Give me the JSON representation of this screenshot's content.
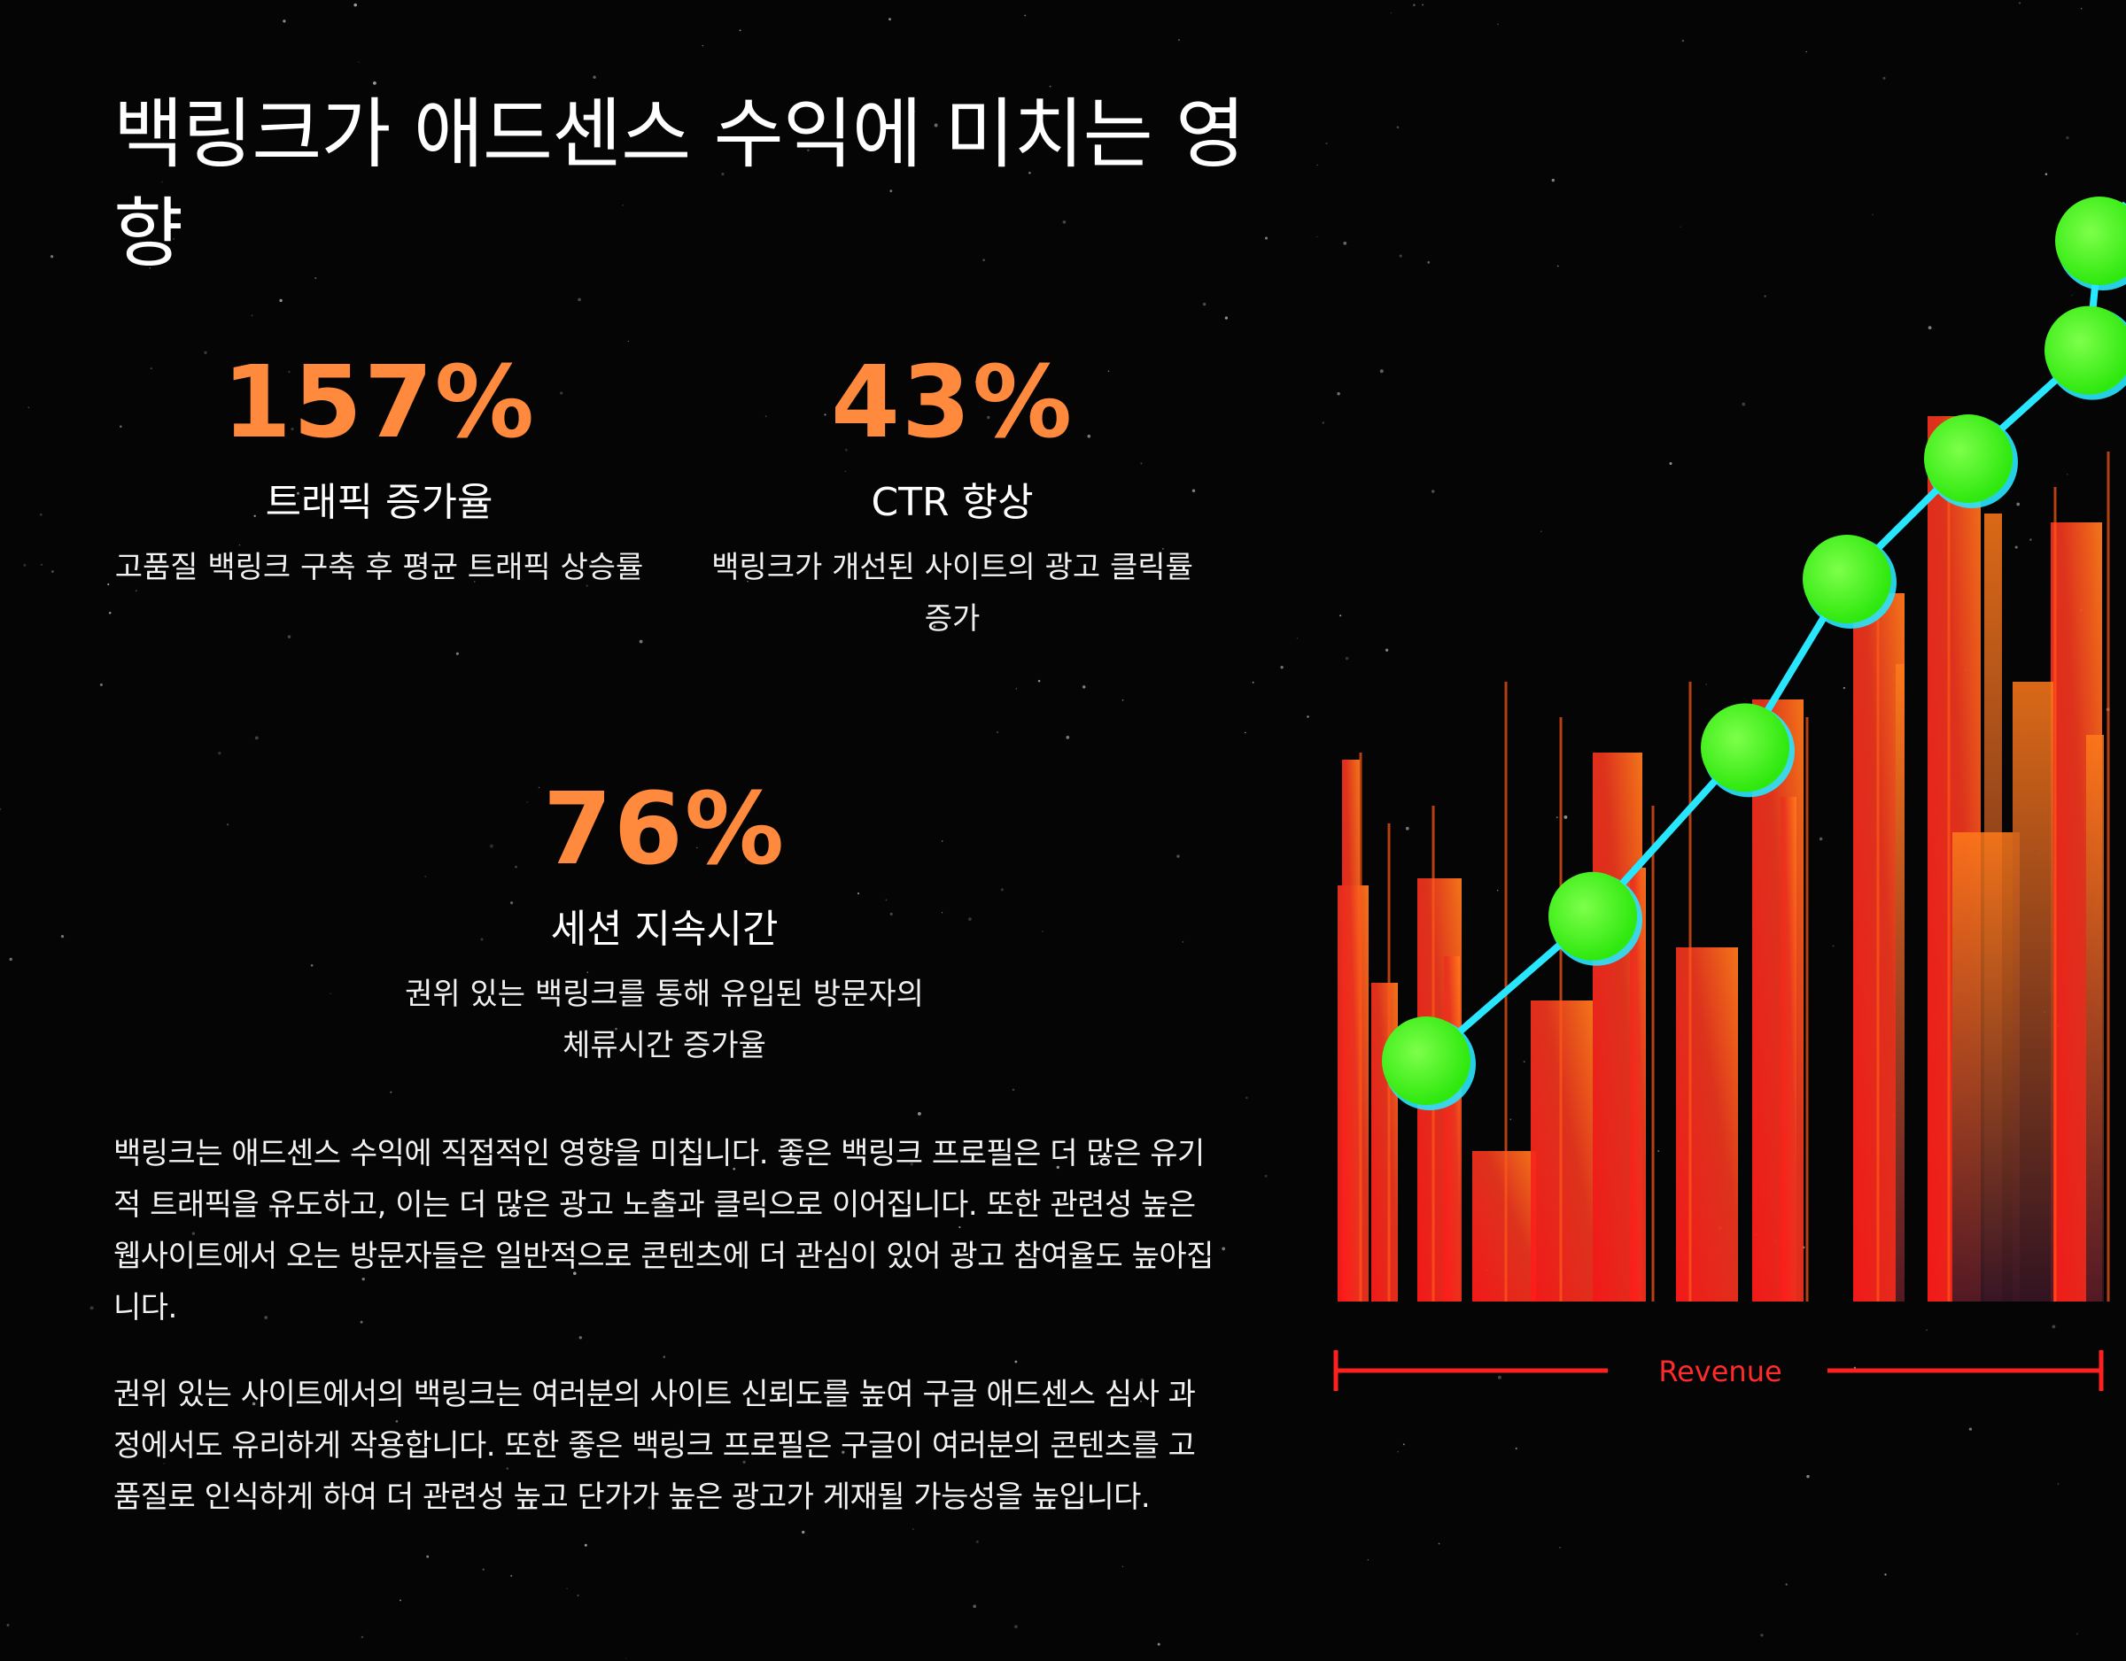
{
  "title": "백링크가 애드센스 수익에 미치는 영향",
  "stats": [
    {
      "value": "157%",
      "label": "트래픽 증가율",
      "description": "고품질 백링크 구축 후 평균 트래픽 상승률"
    },
    {
      "value": "43%",
      "label": "CTR 향상",
      "description": "백링크가 개선된 사이트의 광고 클릭률 증가"
    },
    {
      "value": "76%",
      "label": "세션 지속시간",
      "description": "권위 있는 백링크를 통해 유입된 방문자의 체류시간 증가율"
    }
  ],
  "paragraphs": [
    "백링크는 애드센스 수익에 직접적인 영향을 미칩니다. 좋은 백링크 프로필은 더 많은 유기적 트래픽을 유도하고, 이는 더 많은 광고 노출과 클릭으로 이어집니다. 또한 관련성 높은 웹사이트에서 오는 방문자들은 일반적으로 콘텐츠에 더 관심이 있어 광고 참여율도 높아집니다.",
    "권위 있는 사이트에서의 백링크는 여러분의 사이트 신뢰도를 높여 구글 애드센스 심사 과정에서도 유리하게 작용합니다. 또한 좋은 백링크 프로필은 구글이 여러분의 콘텐츠를 고품질로 인식하게 하여 더 관련성 높고 단가가 높은 광고가 게재될 가능성을 높입니다."
  ],
  "illustration": {
    "axis_label": "Revenue",
    "colors": {
      "bar_low": "#ff1a1a",
      "bar_high": "#ff7a1a",
      "line": "#29e6ff",
      "dot": "#39ff14",
      "axis": "#ff2020"
    },
    "trend": [
      0.2,
      0.32,
      0.46,
      0.6,
      0.7,
      0.79,
      0.95
    ]
  }
}
